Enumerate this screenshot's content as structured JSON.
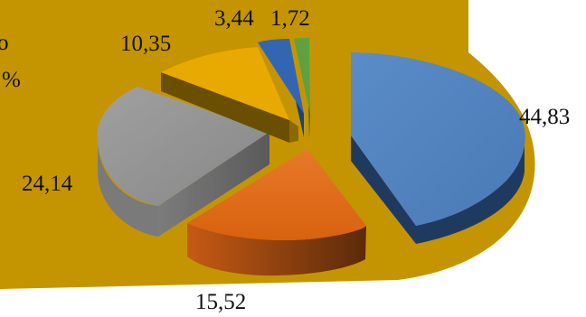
{
  "chart_data": {
    "type": "pie",
    "subtype": "3d-exploded",
    "title": "",
    "unit_suffix_visible": "%",
    "background_color": "#C49500",
    "slices": [
      {
        "label": "44,83",
        "value": 44.83,
        "color": "#4F81BD"
      },
      {
        "label": "15,52",
        "value": 15.52,
        "color": "#E46C0A"
      },
      {
        "label": "24,14",
        "value": 24.14,
        "color": "#8C8C8C"
      },
      {
        "label": "10,35",
        "value": 10.35,
        "color": "#E8A900"
      },
      {
        "label": "3,44",
        "value": 3.44,
        "color": "#3366B2"
      },
      {
        "label": "1,72",
        "value": 1.72,
        "color": "#5FA140"
      }
    ]
  },
  "edge_fragments": {
    "percent_fragment": "%",
    "top_fragment": "o"
  }
}
